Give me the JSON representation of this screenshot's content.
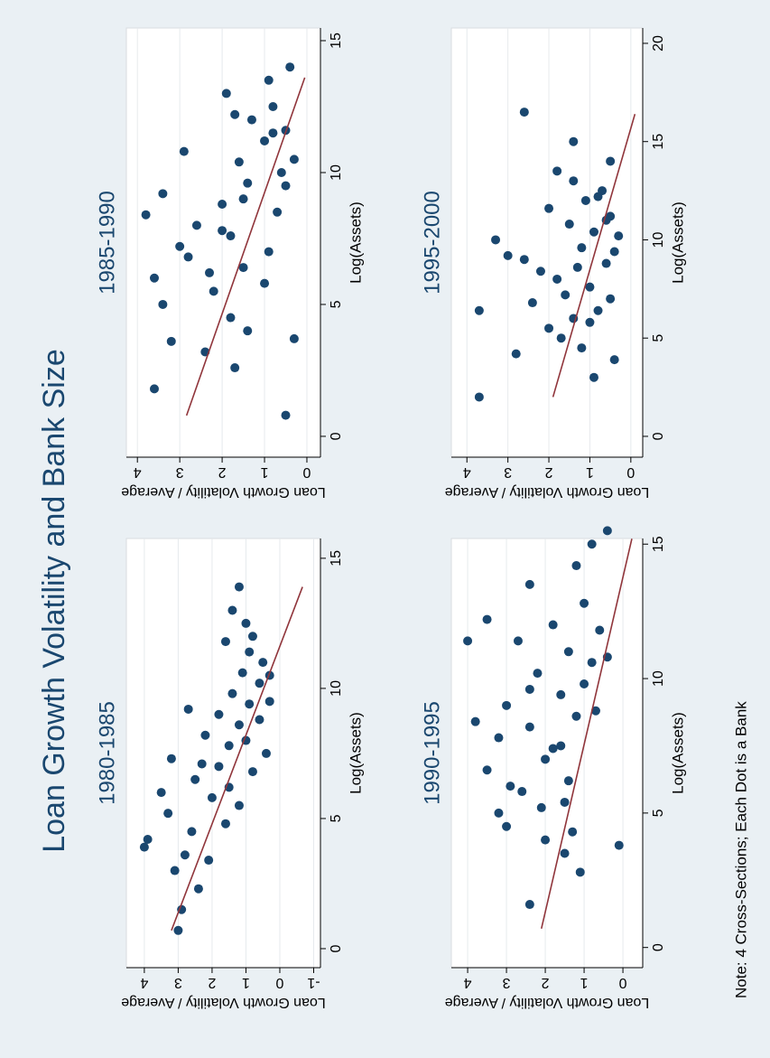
{
  "title": "Loan Growth Volatility and Bank Size",
  "note": "Note: 4 Cross-Sections; Each Dot is a Bank",
  "chart_data": [
    {
      "type": "scatter",
      "title": "1980-1985",
      "xlabel": "Log(Assets)",
      "ylabel": "Loan Growth Volatility / Average",
      "xlim": [
        -0.73,
        15.76
      ],
      "ylim": [
        -1.2,
        4.53
      ],
      "xticks": [
        0,
        5,
        10,
        15
      ],
      "yticks": [
        -1,
        0,
        1,
        2,
        3,
        4
      ],
      "grid": true,
      "color": "#1a476f",
      "x": [
        0.7,
        1.5,
        2.3,
        3.0,
        3.4,
        3.9,
        4.2,
        4.8,
        5.2,
        5.8,
        6.0,
        6.5,
        7.0,
        7.3,
        7.8,
        8.2,
        8.6,
        9.0,
        9.4,
        9.8,
        10.2,
        10.6,
        11.0,
        11.4,
        12.0,
        12.5,
        13.0,
        13.9,
        5.5,
        6.8,
        7.5,
        8.0,
        8.8,
        9.5,
        10.5,
        4.5,
        6.2,
        7.1,
        3.6,
        9.2,
        11.8
      ],
      "y": [
        3.0,
        2.9,
        2.4,
        3.1,
        2.1,
        4.0,
        3.9,
        1.6,
        3.3,
        2.0,
        3.5,
        2.5,
        1.8,
        3.2,
        1.5,
        2.2,
        1.2,
        1.8,
        0.9,
        1.4,
        0.6,
        1.1,
        0.5,
        0.9,
        0.8,
        1.0,
        1.4,
        1.2,
        1.2,
        0.8,
        0.4,
        1.0,
        0.6,
        0.3,
        0.3,
        2.6,
        1.5,
        2.3,
        2.8,
        2.7,
        1.6
      ],
      "fit": {
        "color": "#90353b",
        "x": [
          0.7,
          13.9
        ],
        "y": [
          3.2,
          -0.67
        ]
      }
    },
    {
      "type": "scatter",
      "title": "1985-1990",
      "xlabel": "Log(Assets)",
      "ylabel": "Loan Growth Volatility / Average",
      "xlim": [
        -0.79,
        15.48
      ],
      "ylim": [
        -0.32,
        4.26
      ],
      "xticks": [
        0,
        5,
        10,
        15
      ],
      "yticks": [
        0,
        1,
        2,
        3,
        4
      ],
      "grid": true,
      "color": "#1a476f",
      "x": [
        0.8,
        1.8,
        2.6,
        3.2,
        3.6,
        4.5,
        5.0,
        5.5,
        6.0,
        6.4,
        6.8,
        7.2,
        7.6,
        8.0,
        8.4,
        8.8,
        9.2,
        9.6,
        10.0,
        10.4,
        10.8,
        11.2,
        11.6,
        12.0,
        12.5,
        13.0,
        13.5,
        14.0,
        4.0,
        5.8,
        7.0,
        8.5,
        9.5,
        10.5,
        11.5,
        6.2,
        7.8,
        9.0,
        3.7,
        12.2
      ],
      "y": [
        0.5,
        3.6,
        1.7,
        2.4,
        3.2,
        1.8,
        3.4,
        2.2,
        3.6,
        1.5,
        2.8,
        3.0,
        1.8,
        2.6,
        3.8,
        2.0,
        3.4,
        1.4,
        0.6,
        1.6,
        2.9,
        1.0,
        0.5,
        1.3,
        0.8,
        1.9,
        0.9,
        0.4,
        1.4,
        1.0,
        0.9,
        0.7,
        0.5,
        0.3,
        0.8,
        2.3,
        2.0,
        1.5,
        0.3,
        1.7
      ],
      "fit": {
        "color": "#90353b",
        "x": [
          0.79,
          13.6
        ],
        "y": [
          2.84,
          0.05
        ]
      }
    },
    {
      "type": "scatter",
      "title": "1990-1995",
      "xlabel": "Log(Assets)",
      "ylabel": "Loan Growth Volatility / Average",
      "xlim": [
        -0.75,
        15.21
      ],
      "ylim": [
        -0.51,
        4.42
      ],
      "xticks": [
        0,
        5,
        10,
        15
      ],
      "yticks": [
        0,
        1,
        2,
        3,
        4
      ],
      "grid": true,
      "color": "#1a476f",
      "x": [
        1.6,
        2.8,
        3.5,
        4.0,
        4.5,
        5.0,
        5.4,
        5.8,
        6.2,
        6.6,
        7.0,
        7.4,
        7.8,
        8.2,
        8.6,
        9.0,
        9.4,
        9.8,
        10.2,
        10.6,
        11.0,
        11.4,
        11.8,
        12.2,
        12.8,
        13.5,
        14.2,
        15.0,
        15.5,
        3.8,
        4.3,
        6.0,
        7.5,
        8.4,
        9.6,
        11.4,
        5.2,
        8.8,
        10.8,
        12.0
      ],
      "y": [
        2.4,
        1.1,
        1.5,
        2.0,
        3.0,
        3.2,
        1.5,
        2.6,
        1.4,
        3.5,
        2.0,
        1.8,
        3.2,
        2.4,
        1.2,
        3.0,
        1.6,
        1.0,
        2.2,
        0.8,
        1.4,
        2.7,
        0.6,
        3.5,
        1.0,
        2.4,
        1.2,
        0.8,
        0.4,
        0.1,
        1.3,
        2.9,
        1.6,
        3.8,
        2.4,
        4.0,
        2.1,
        0.7,
        0.4,
        1.8
      ],
      "fit": {
        "color": "#90353b",
        "x": [
          0.7,
          15.2
        ],
        "y": [
          2.1,
          -0.23
        ]
      }
    },
    {
      "type": "scatter",
      "title": "1995-2000",
      "xlabel": "Log(Assets)",
      "ylabel": "Loan Growth Volatility / Average",
      "xlim": [
        -1.06,
        20.78
      ],
      "ylim": [
        -0.29,
        4.38
      ],
      "xticks": [
        0,
        5,
        10,
        15,
        20
      ],
      "yticks": [
        0,
        1,
        2,
        3,
        4
      ],
      "grid": true,
      "color": "#1a476f",
      "x": [
        2.0,
        3.0,
        3.9,
        4.5,
        5.0,
        5.5,
        6.0,
        6.4,
        6.8,
        7.2,
        7.6,
        8.0,
        8.4,
        8.8,
        9.2,
        9.6,
        10.0,
        10.4,
        10.8,
        11.2,
        11.6,
        12.0,
        12.5,
        13.0,
        13.5,
        14.0,
        15.0,
        16.5,
        6.4,
        4.2,
        7.0,
        8.6,
        9.4,
        10.2,
        11.0,
        12.2,
        5.8,
        9.0
      ],
      "y": [
        3.7,
        0.9,
        0.4,
        1.2,
        1.7,
        2.0,
        1.4,
        0.8,
        2.4,
        1.6,
        1.0,
        1.8,
        2.2,
        0.6,
        3.0,
        1.2,
        3.3,
        0.9,
        1.5,
        0.5,
        2.0,
        1.1,
        0.7,
        1.4,
        1.8,
        0.5,
        1.4,
        2.6,
        3.7,
        2.8,
        0.5,
        1.3,
        0.4,
        0.3,
        0.6,
        0.8,
        1.0,
        2.6
      ],
      "fit": {
        "color": "#90353b",
        "x": [
          2.0,
          16.4
        ],
        "y": [
          1.9,
          -0.1
        ]
      }
    }
  ]
}
